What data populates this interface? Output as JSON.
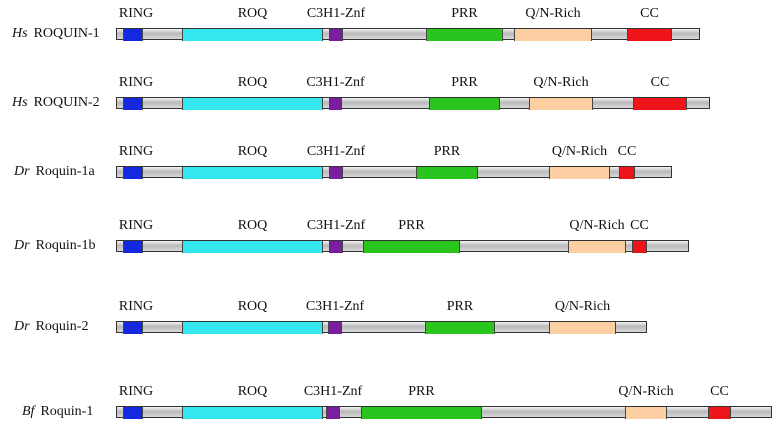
{
  "colors": {
    "RING": "#1328e0",
    "ROQ": "#34e6ee",
    "C3H1-Znf": "#7a1ea0",
    "PRR": "#2ac41f",
    "Q/N-Rich": "#fbcfa2",
    "CC": "#ee1419",
    "linker": "#c8c8c8"
  },
  "proteins": [
    {
      "species": "Hs",
      "name": "ROQUIN-1",
      "length": 584,
      "domains": [
        {
          "type": "RING",
          "label": "RING",
          "start": 7,
          "end": 27
        },
        {
          "type": "ROQ",
          "label": "ROQ",
          "start": 66,
          "end": 207
        },
        {
          "type": "C3H1-Znf",
          "label": "C3H1-Znf",
          "start": 213,
          "end": 227
        },
        {
          "type": "PRR",
          "label": "PRR",
          "start": 310,
          "end": 387
        },
        {
          "type": "Q/N-Rich",
          "label": "Q/N-Rich",
          "start": 398,
          "end": 476
        },
        {
          "type": "CC",
          "label": "CC",
          "start": 511,
          "end": 556
        }
      ]
    },
    {
      "species": "Hs",
      "name": "ROQUIN-2",
      "length": 594,
      "domains": [
        {
          "type": "RING",
          "label": "RING",
          "start": 7,
          "end": 27
        },
        {
          "type": "ROQ",
          "label": "ROQ",
          "start": 66,
          "end": 207
        },
        {
          "type": "C3H1-Znf",
          "label": "C3H1-Znf",
          "start": 213,
          "end": 226
        },
        {
          "type": "PRR",
          "label": "PRR",
          "start": 313,
          "end": 384
        },
        {
          "type": "Q/N-Rich",
          "label": "Q/N-Rich",
          "start": 413,
          "end": 477
        },
        {
          "type": "CC",
          "label": "CC",
          "start": 517,
          "end": 571
        }
      ]
    },
    {
      "species": "Dr",
      "name": "Roquin-1a",
      "length": 556,
      "domains": [
        {
          "type": "RING",
          "label": "RING",
          "start": 7,
          "end": 27
        },
        {
          "type": "ROQ",
          "label": "ROQ",
          "start": 66,
          "end": 207
        },
        {
          "type": "C3H1-Znf",
          "label": "C3H1-Znf",
          "start": 213,
          "end": 227
        },
        {
          "type": "PRR",
          "label": "PRR",
          "start": 300,
          "end": 362
        },
        {
          "type": "Q/N-Rich",
          "label": "Q/N-Rich",
          "start": 433,
          "end": 494
        },
        {
          "type": "CC",
          "label": "CC",
          "start": 503,
          "end": 519
        }
      ]
    },
    {
      "species": "Dr",
      "name": "Roquin-1b",
      "length": 573,
      "domains": [
        {
          "type": "RING",
          "label": "RING",
          "start": 7,
          "end": 27
        },
        {
          "type": "ROQ",
          "label": "ROQ",
          "start": 66,
          "end": 207
        },
        {
          "type": "C3H1-Znf",
          "label": "C3H1-Znf",
          "start": 213,
          "end": 227
        },
        {
          "type": "PRR",
          "label": "PRR",
          "start": 247,
          "end": 344
        },
        {
          "type": "Q/N-Rich",
          "label": "Q/N-Rich",
          "start": 452,
          "end": 510
        },
        {
          "type": "CC",
          "label": "CC",
          "start": 516,
          "end": 531
        }
      ]
    },
    {
      "species": "Dr",
      "name": "Roquin-2",
      "length": 531,
      "domains": [
        {
          "type": "RING",
          "label": "RING",
          "start": 7,
          "end": 27
        },
        {
          "type": "ROQ",
          "label": "ROQ",
          "start": 66,
          "end": 207
        },
        {
          "type": "C3H1-Znf",
          "label": "C3H1-Znf",
          "start": 212,
          "end": 226
        },
        {
          "type": "PRR",
          "label": "PRR",
          "start": 309,
          "end": 379
        },
        {
          "type": "Q/N-Rich",
          "label": "Q/N-Rich",
          "start": 433,
          "end": 500
        }
      ]
    },
    {
      "species": "Bf",
      "name": "Roquin-1",
      "length": 656,
      "domains": [
        {
          "type": "RING",
          "label": "RING",
          "start": 7,
          "end": 27
        },
        {
          "type": "ROQ",
          "label": "ROQ",
          "start": 66,
          "end": 207
        },
        {
          "type": "C3H1-Znf",
          "label": "C3H1-Znf",
          "start": 210,
          "end": 224
        },
        {
          "type": "PRR",
          "label": "PRR",
          "start": 245,
          "end": 366
        },
        {
          "type": "Q/N-Rich",
          "label": "Q/N-Rich",
          "start": 509,
          "end": 551
        },
        {
          "type": "CC",
          "label": "CC",
          "start": 592,
          "end": 615
        }
      ]
    }
  ]
}
